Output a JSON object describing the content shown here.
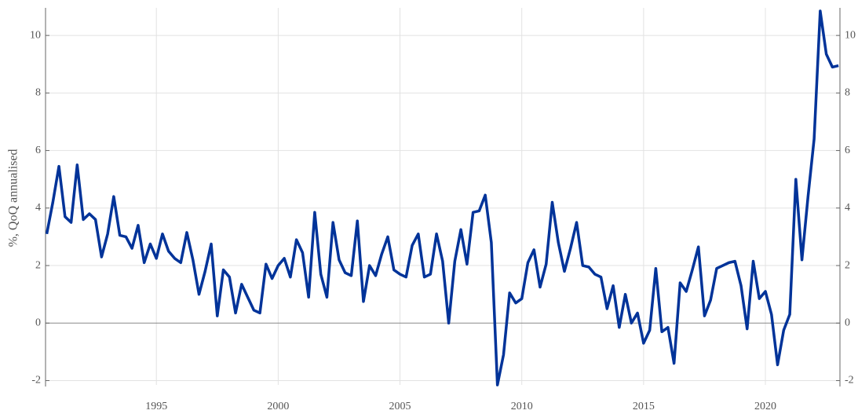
{
  "chart_data": {
    "type": "line",
    "y_label": "%, QoQ annualised",
    "x": [
      1990.5,
      1990.75,
      1991,
      1991.25,
      1991.5,
      1991.75,
      1992,
      1992.25,
      1992.5,
      1992.75,
      1993,
      1993.25,
      1993.5,
      1993.75,
      1994,
      1994.25,
      1994.5,
      1994.75,
      1995,
      1995.25,
      1995.5,
      1995.75,
      1996,
      1996.25,
      1996.5,
      1996.75,
      1997,
      1997.25,
      1997.5,
      1997.75,
      1998,
      1998.25,
      1998.5,
      1998.75,
      1999,
      1999.25,
      1999.5,
      1999.75,
      2000,
      2000.25,
      2000.5,
      2000.75,
      2001,
      2001.25,
      2001.5,
      2001.75,
      2002,
      2002.25,
      2002.5,
      2002.75,
      2003,
      2003.25,
      2003.5,
      2003.75,
      2004,
      2004.25,
      2004.5,
      2004.75,
      2005,
      2005.25,
      2005.5,
      2005.75,
      2006,
      2006.25,
      2006.5,
      2006.75,
      2007,
      2007.25,
      2007.5,
      2007.75,
      2008,
      2008.25,
      2008.5,
      2008.75,
      2009,
      2009.25,
      2009.5,
      2009.75,
      2010,
      2010.25,
      2010.5,
      2010.75,
      2011,
      2011.25,
      2011.5,
      2011.75,
      2012,
      2012.25,
      2012.5,
      2012.75,
      2013,
      2013.25,
      2013.5,
      2013.75,
      2014,
      2014.25,
      2014.5,
      2014.75,
      2015,
      2015.25,
      2015.5,
      2015.75,
      2016,
      2016.25,
      2016.5,
      2016.75,
      2017,
      2017.25,
      2017.5,
      2017.75,
      2018,
      2018.25,
      2018.5,
      2018.75,
      2019,
      2019.25,
      2019.5,
      2019.75,
      2020,
      2020.25,
      2020.5,
      2020.75,
      2021,
      2021.25,
      2021.5,
      2021.75,
      2022,
      2022.25,
      2022.5,
      2022.75,
      2023
    ],
    "series": [
      {
        "color": "#003399",
        "values": [
          3.1,
          4.2,
          5.45,
          3.7,
          3.5,
          5.5,
          3.6,
          3.8,
          3.6,
          2.3,
          3.1,
          4.4,
          3.05,
          3.0,
          2.6,
          3.4,
          2.1,
          2.75,
          2.25,
          3.1,
          2.5,
          2.25,
          2.1,
          3.15,
          2.2,
          1.0,
          1.8,
          2.75,
          0.25,
          1.85,
          1.6,
          0.35,
          1.35,
          0.9,
          0.45,
          0.35,
          2.05,
          1.55,
          2.0,
          2.25,
          1.6,
          2.9,
          2.45,
          0.9,
          3.85,
          1.7,
          0.9,
          3.5,
          2.2,
          1.75,
          1.65,
          3.55,
          0.75,
          2.0,
          1.65,
          2.4,
          3.0,
          1.85,
          1.7,
          1.6,
          2.7,
          3.1,
          1.6,
          1.7,
          3.1,
          2.15,
          0.0,
          2.15,
          3.25,
          2.05,
          3.85,
          3.9,
          4.45,
          2.8,
          -2.15,
          -1.1,
          1.05,
          0.7,
          0.85,
          2.1,
          2.55,
          1.25,
          2.05,
          4.2,
          2.8,
          1.8,
          2.6,
          3.5,
          2.0,
          1.95,
          1.7,
          1.6,
          0.5,
          1.3,
          -0.15,
          1.0,
          0.0,
          0.35,
          -0.7,
          -0.25,
          1.9,
          -0.3,
          -0.15,
          -1.4,
          1.4,
          1.1,
          1.85,
          2.65,
          0.25,
          0.8,
          1.9,
          2.0,
          2.1,
          2.15,
          1.3,
          -0.2,
          2.15,
          0.85,
          1.1,
          0.3,
          -1.45,
          -0.25,
          0.3,
          5.0,
          2.2,
          4.4,
          6.4,
          10.85,
          9.35,
          8.9,
          8.95
        ]
      }
    ],
    "xlim": [
      1990.45,
      2023.06
    ],
    "xticks": [
      1995,
      2000,
      2005,
      2010,
      2015,
      2020
    ],
    "ylim": [
      -2.15,
      10.85
    ],
    "yticks": [
      -2,
      0,
      2,
      4,
      6,
      8,
      10
    ],
    "y2lim": [
      -2.15,
      10.85
    ],
    "y2ticks": [
      -2,
      0,
      2,
      4,
      6,
      8,
      10
    ],
    "grid": true
  }
}
